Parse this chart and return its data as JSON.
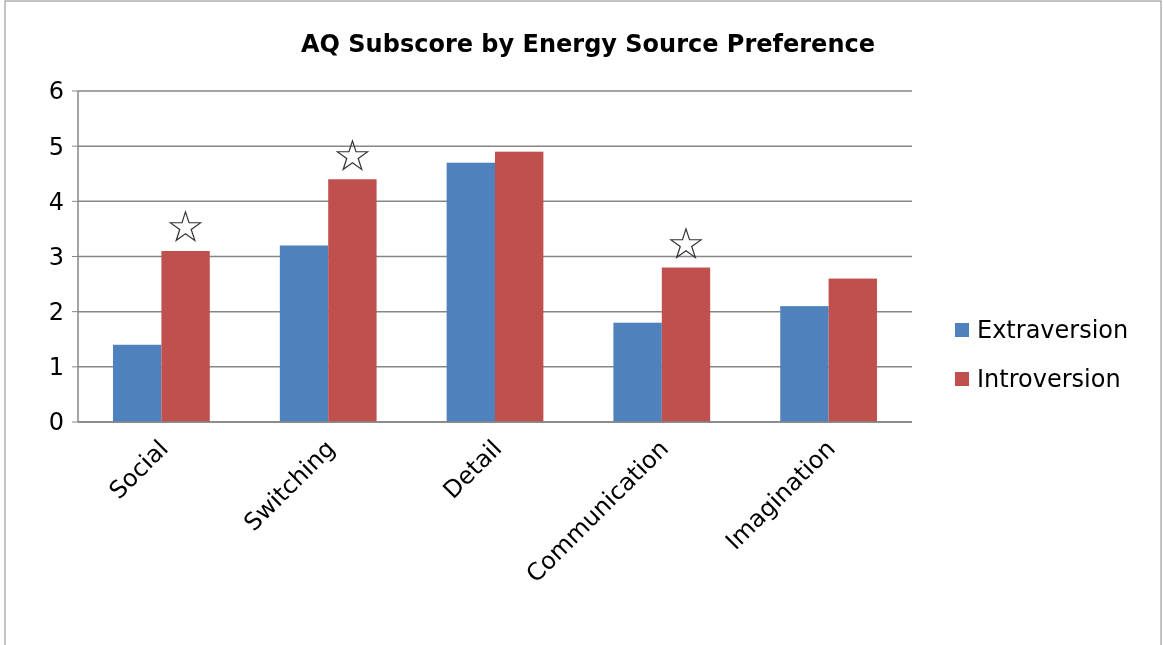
{
  "chart_data": {
    "type": "bar",
    "title": "AQ Subscore by Energy Source Preference",
    "categories": [
      "Social",
      "Switching",
      "Detail",
      "Communication",
      "Imagination"
    ],
    "series": [
      {
        "name": "Extraversion",
        "color": "#4f81bd",
        "values": [
          1.4,
          3.2,
          4.7,
          1.8,
          2.1
        ]
      },
      {
        "name": "Introversion",
        "color": "#c0504d",
        "values": [
          3.1,
          4.4,
          4.9,
          2.8,
          2.6
        ]
      }
    ],
    "ylim": [
      0,
      6
    ],
    "yticks": [
      0,
      1,
      2,
      3,
      4,
      5,
      6
    ],
    "grid": "y",
    "legend": "right",
    "annotations": [
      {
        "text": "☆",
        "x": "Social",
        "y": 3.1
      },
      {
        "text": "☆",
        "x": "Switching",
        "y": 4.4
      },
      {
        "text": "☆",
        "x": "Communication",
        "y": 2.8
      }
    ]
  }
}
